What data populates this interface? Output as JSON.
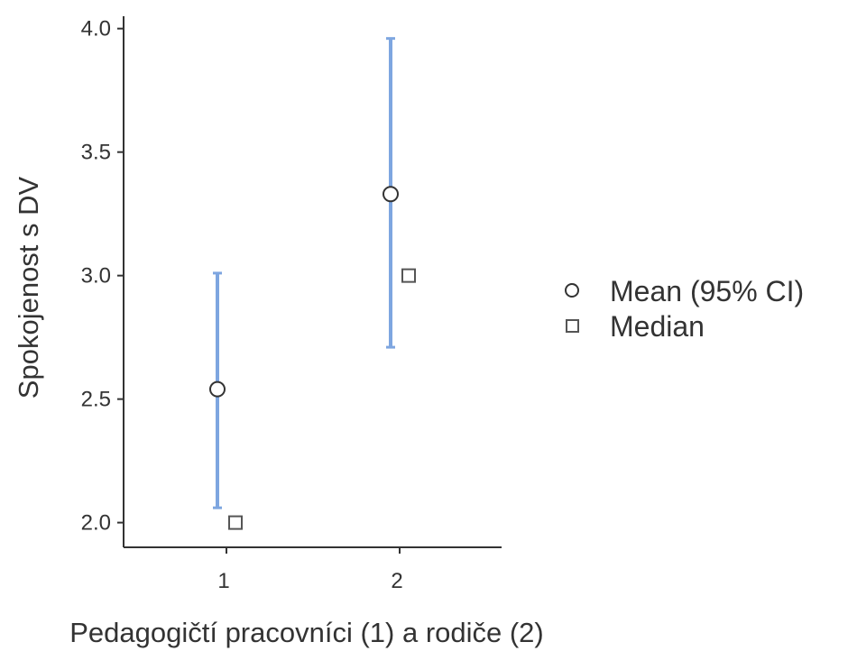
{
  "chart_data": {
    "type": "scatter",
    "title": "",
    "xlabel": "Pedagogičtí pracovníci (1) a rodiče (2)",
    "ylabel": "Spokojenost s DV",
    "categories": [
      "1",
      "2"
    ],
    "ylim": [
      1.9,
      4.05
    ],
    "yticks": [
      "2.0",
      "2.5",
      "3.0",
      "3.5",
      "4.0"
    ],
    "grid": false,
    "legend_position": "right",
    "series": [
      {
        "name": "Mean (95% CI)",
        "marker": "circle",
        "values": [
          2.54,
          3.33
        ],
        "ci_lower": [
          2.06,
          2.71
        ],
        "ci_upper": [
          3.01,
          3.96
        ]
      },
      {
        "name": "Median",
        "marker": "square",
        "values": [
          2.0,
          3.0
        ]
      }
    ],
    "colors": {
      "errorbar": "#7ea6e0",
      "axis": "#333333",
      "marker_stroke": "#333333",
      "median_stroke": "#555555"
    }
  }
}
